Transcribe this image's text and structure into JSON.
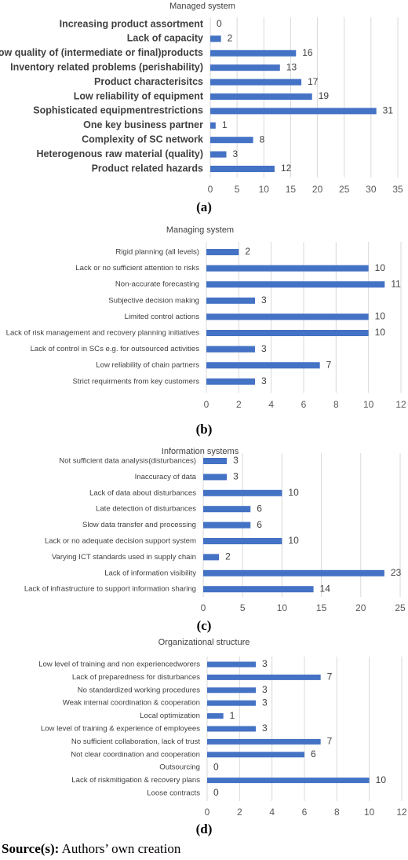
{
  "chart_data": [
    {
      "type": "bar",
      "title": "Managed system",
      "panel": "(a)",
      "categories": [
        "Increasing product assortment",
        "Lack of capacity",
        "Low quality of (intermediate or final)products",
        "Inventory related problems (perishability)",
        "Product characterisitcs",
        "Low reliability of equipment",
        "Sophisticated equipmentrestrictions",
        "One key business partner",
        "Complexity of SC network",
        "Heterogenous raw material (quality)",
        "Product related hazards"
      ],
      "values": [
        0,
        2,
        16,
        13,
        17,
        19,
        31,
        1,
        8,
        3,
        12
      ],
      "color": "#4472c4",
      "xlim": [
        0,
        35
      ],
      "xticks": [
        0,
        5,
        10,
        15,
        20,
        25,
        30,
        35
      ],
      "grid": true
    },
    {
      "type": "bar",
      "title": "Managing system",
      "panel": "(b)",
      "categories": [
        "Rigid planning (all levels)",
        "Lack or no sufficient attention to risks",
        "Non-accurate forecasting",
        "Subjective decision making",
        "Limited control actions",
        "Lack of risk management and recovery planning initiatives",
        "Lack of control in SCs e.g. for outsourced activities",
        "Low reliability of chain partners",
        "Strict requirments from key customers"
      ],
      "values": [
        2,
        10,
        11,
        3,
        10,
        10,
        3,
        7,
        3
      ],
      "color": "#4472c4",
      "xlim": [
        0,
        12
      ],
      "xticks": [
        0,
        2,
        4,
        6,
        8,
        10,
        12
      ],
      "grid": true
    },
    {
      "type": "bar",
      "title": "Information systems",
      "panel": "(c)",
      "categories": [
        "Not sufficient data analysis(disturbances)",
        "Inaccuracy of data",
        "Lack of data about disturbances",
        "Late detection of disturbances",
        "Slow data transfer and processing",
        "Lack or no adequate decision support system",
        "Varying ICT standards used in supply chain",
        "Lack of information visibility",
        "Lack of infrastructure to support information sharing"
      ],
      "values": [
        3,
        3,
        10,
        6,
        6,
        10,
        2,
        23,
        14
      ],
      "color": "#4472c4",
      "xlim": [
        0,
        25
      ],
      "xticks": [
        0,
        5,
        10,
        15,
        20,
        25
      ],
      "grid": true
    },
    {
      "type": "bar",
      "title": "Organizational structure",
      "panel": "(d)",
      "categories": [
        "Low level of training and non experiencedworers",
        "Lack of preparedness for disturbances",
        "No standardized working procedures",
        "Weak internal coordination & cooperation",
        "Local optimization",
        "Low level of training & experience of employees",
        "No sufficient collaboration, lack of trust",
        "Not clear coordination and cooperation",
        "Outsourcing",
        "Lack of riskmitigation & recovery plans",
        "Loose contracts"
      ],
      "values": [
        3,
        7,
        3,
        3,
        1,
        3,
        7,
        6,
        0,
        10,
        0
      ],
      "color": "#4472c4",
      "xlim": [
        0,
        12
      ],
      "xticks": [
        0,
        2,
        4,
        6,
        8,
        10,
        12
      ],
      "grid": true
    }
  ],
  "source": {
    "label": "Source(s):",
    "text": "Authors’ own creation"
  }
}
